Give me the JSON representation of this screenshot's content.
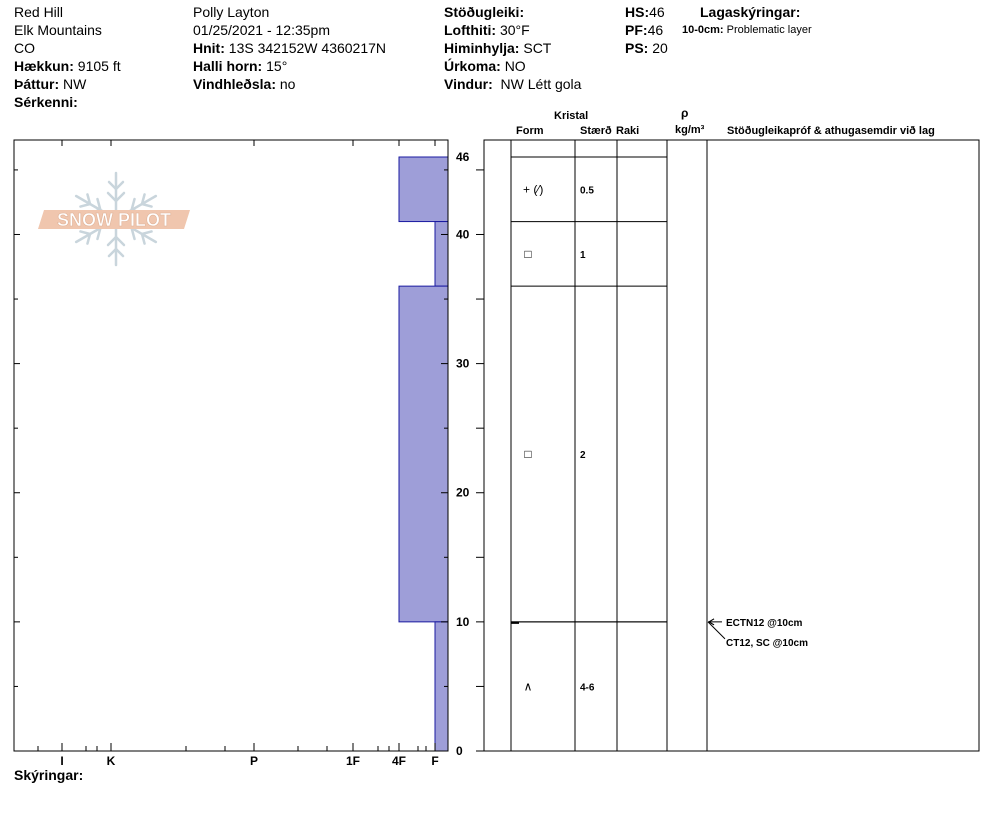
{
  "header": {
    "location": [
      "Red Hill",
      "Elk Mountains",
      "CO"
    ],
    "elevation": {
      "label": "Hækkun:",
      "value": "9105 ft"
    },
    "aspect": {
      "label": "Þáttur:",
      "value": "NW"
    },
    "features": {
      "label": "Sérkenni:",
      "value": ""
    },
    "observer": "Polly Layton",
    "datetime": "01/25/2021 - 12:35pm",
    "coords": {
      "label": "Hnit:",
      "value": "13S 342152W 4360217N"
    },
    "slope": {
      "label": "Halli horn:",
      "value": "15°"
    },
    "wind_loading": {
      "label": "Vindhleðsla:",
      "value": "no"
    },
    "stability": {
      "label": "Stöðugleiki:",
      "value": ""
    },
    "air_temp": {
      "label": "Lofthiti:",
      "value": "30°F"
    },
    "sky": {
      "label": "Himinhylja:",
      "value": "SCT"
    },
    "precip": {
      "label": "Úrkoma:",
      "value": "NO"
    },
    "wind": {
      "label": "Vindur:",
      "value": "NW Létt gola"
    },
    "hs": {
      "label": "HS:",
      "value": "46"
    },
    "pf": {
      "label": "PF:",
      "value": "46"
    },
    "ps": {
      "label": "PS:",
      "value": "20"
    },
    "legend": {
      "title": "Lagaskýringar:",
      "key": "10-0cm:",
      "text": "Problematic layer"
    }
  },
  "table_header": {
    "crystal": "Kristal",
    "form": "Form",
    "size": "Stærð",
    "moisture": "Raki",
    "rho": "ρ",
    "rho_unit": "kg/m³",
    "tests": "Stöðugleikapróf & athugasemdir við lag"
  },
  "footer": {
    "label": "Skýringar:"
  },
  "logo": {
    "text": "SNOW PILOT"
  },
  "colors": {
    "hardness_fill": "#9e9ed8",
    "hardness_stroke": "#1a1aa0"
  },
  "chart_data": {
    "type": "bar",
    "orientation": "horizontal",
    "y_axis": {
      "range": [
        0,
        46
      ],
      "ticks": [
        0,
        10,
        20,
        30,
        40,
        46
      ]
    },
    "x_axis": {
      "tick_labels": [
        "I",
        "K",
        "P",
        "1F",
        "4F",
        "F"
      ]
    },
    "layers": [
      {
        "bottom": 41,
        "top": 46,
        "hardness": "4F",
        "form": "+ (⁄)",
        "size": "0.5"
      },
      {
        "bottom": 36,
        "top": 41,
        "hardness": "F",
        "form": "□",
        "size": "1"
      },
      {
        "bottom": 10,
        "top": 36,
        "hardness": "4F",
        "form": "□",
        "size": "2"
      },
      {
        "bottom": 0,
        "top": 10,
        "hardness": "F",
        "form": "∧",
        "size": "4-6"
      }
    ],
    "tests": [
      {
        "depth": 10,
        "text": "ECTN12 @10cm"
      },
      {
        "depth": 10,
        "text": "CT12, SC @10cm"
      }
    ]
  }
}
